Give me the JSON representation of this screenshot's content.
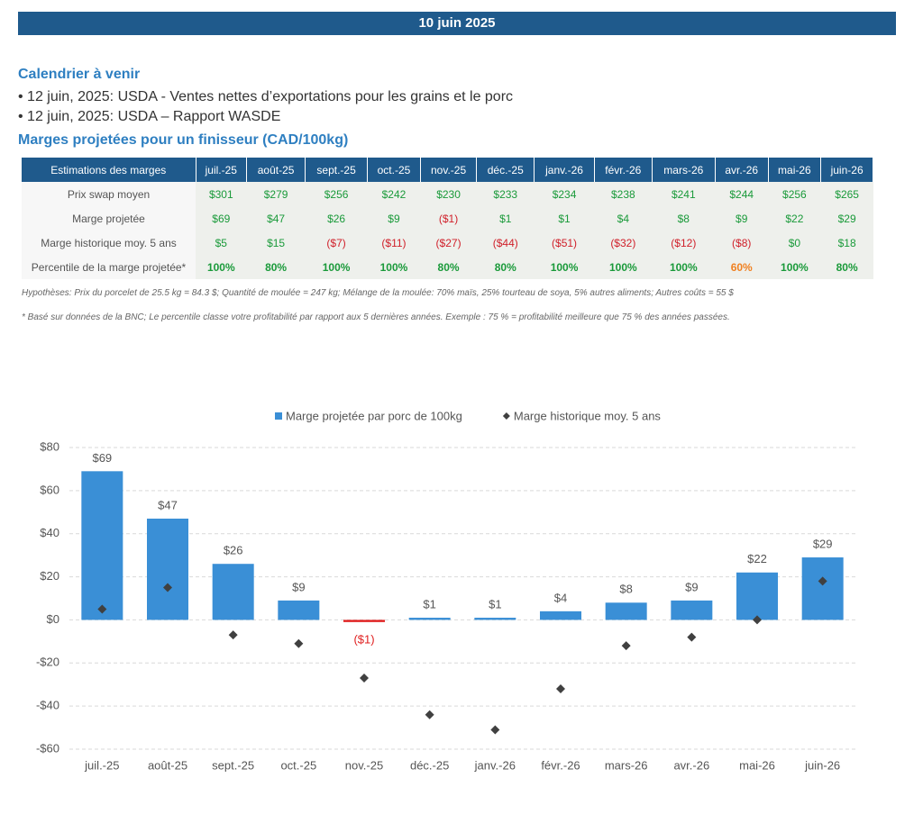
{
  "header": {
    "title": "10 juin 2025"
  },
  "calendar": {
    "title": "Calendrier à venir",
    "items": [
      "• 12 juin, 2025: USDA - Ventes nettes d’exportations pour les grains et le porc",
      "• 12 juin, 2025: USDA – Rapport WASDE"
    ]
  },
  "table": {
    "title": "Marges projetées pour un finisseur (CAD/100kg)",
    "header": [
      "Estimations des marges",
      "juil.-25",
      "août-25",
      "sept.-25",
      "oct.-25",
      "nov.-25",
      "déc.-25",
      "janv.-26",
      "févr.-26",
      "mars-26",
      "avr.-26",
      "mai-26",
      "juin-26"
    ],
    "rows": [
      {
        "label": "Prix swap moyen",
        "cells": [
          "$301",
          "$279",
          "$256",
          "$242",
          "$230",
          "$233",
          "$234",
          "$238",
          "$241",
          "$244",
          "$256",
          "$265"
        ],
        "colors": [
          "#1a9a3a",
          "#1a9a3a",
          "#1a9a3a",
          "#1a9a3a",
          "#1a9a3a",
          "#1a9a3a",
          "#1a9a3a",
          "#1a9a3a",
          "#1a9a3a",
          "#1a9a3a",
          "#1a9a3a",
          "#1a9a3a"
        ],
        "bold": false
      },
      {
        "label": "Marge projetée",
        "cells": [
          "$69",
          "$47",
          "$26",
          "$9",
          "($1)",
          "$1",
          "$1",
          "$4",
          "$8",
          "$9",
          "$22",
          "$29"
        ],
        "colors": [
          "#1a9a3a",
          "#1a9a3a",
          "#1a9a3a",
          "#1a9a3a",
          "#d0202a",
          "#1a9a3a",
          "#1a9a3a",
          "#1a9a3a",
          "#1a9a3a",
          "#1a9a3a",
          "#1a9a3a",
          "#1a9a3a"
        ],
        "bold": false
      },
      {
        "label": "Marge historique moy. 5 ans",
        "cells": [
          "$5",
          "$15",
          "($7)",
          "($11)",
          "($27)",
          "($44)",
          "($51)",
          "($32)",
          "($12)",
          "($8)",
          "$0",
          "$18"
        ],
        "colors": [
          "#1a9a3a",
          "#1a9a3a",
          "#d0202a",
          "#d0202a",
          "#d0202a",
          "#d0202a",
          "#d0202a",
          "#d0202a",
          "#d0202a",
          "#d0202a",
          "#1a9a3a",
          "#1a9a3a"
        ],
        "bold": false
      },
      {
        "label": "Percentile de la marge projetée*",
        "cells": [
          "100%",
          "80%",
          "100%",
          "100%",
          "80%",
          "80%",
          "100%",
          "100%",
          "100%",
          "60%",
          "100%",
          "80%"
        ],
        "colors": [
          "#1a9a3a",
          "#1a9a3a",
          "#1a9a3a",
          "#1a9a3a",
          "#1a9a3a",
          "#1a9a3a",
          "#1a9a3a",
          "#1a9a3a",
          "#1a9a3a",
          "#f08020",
          "#1a9a3a",
          "#1a9a3a"
        ],
        "bold": true
      }
    ]
  },
  "notes": [
    "Hypothèses: Prix du porcelet de 25.5 kg = 84.3 $; Quantité de moulée = 247 kg; Mélange de la moulée: 70% maïs, 25% tourteau de soya, 5% autres aliments; Autres coûts = 55 $",
    "* Basé sur données de la BNC; Le percentile classe votre profitabilité par rapport aux 5 dernières années. Exemple : 75 % = profitabilité meilleure que 75 % des années passées."
  ],
  "chart_data": {
    "type": "bar",
    "categories": [
      "juil.-25",
      "août-25",
      "sept.-25",
      "oct.-25",
      "nov.-25",
      "déc.-25",
      "janv.-26",
      "févr.-26",
      "mars-26",
      "avr.-26",
      "mai-26",
      "juin-26"
    ],
    "series": [
      {
        "name": "Marge projetée par porc de 100kg",
        "type": "bar",
        "color": "#3a8fd6",
        "negative_color": "#e02020",
        "values": [
          69,
          47,
          26,
          9,
          -1,
          1,
          1,
          4,
          8,
          9,
          22,
          29
        ],
        "value_labels": [
          "$69",
          "$47",
          "$26",
          "$9",
          "($1)",
          "$1",
          "$1",
          "$4",
          "$8",
          "$9",
          "$22",
          "$29"
        ]
      },
      {
        "name": "Marge historique moy. 5 ans",
        "type": "scatter",
        "color": "#404040",
        "values": [
          5,
          15,
          -7,
          -11,
          -27,
          -44,
          -51,
          -32,
          -12,
          -8,
          0,
          18
        ]
      }
    ],
    "ylim": [
      -60,
      80
    ],
    "yticks": [
      {
        "value": -60,
        "label": "-$60"
      },
      {
        "value": -40,
        "label": "-$40"
      },
      {
        "value": -20,
        "label": "-$20"
      },
      {
        "value": 0,
        "label": "$0"
      },
      {
        "value": 20,
        "label": "$20"
      },
      {
        "value": 40,
        "label": "$40"
      },
      {
        "value": 60,
        "label": "$60"
      },
      {
        "value": 80,
        "label": "$80"
      }
    ],
    "grid": true,
    "legend": "top"
  }
}
